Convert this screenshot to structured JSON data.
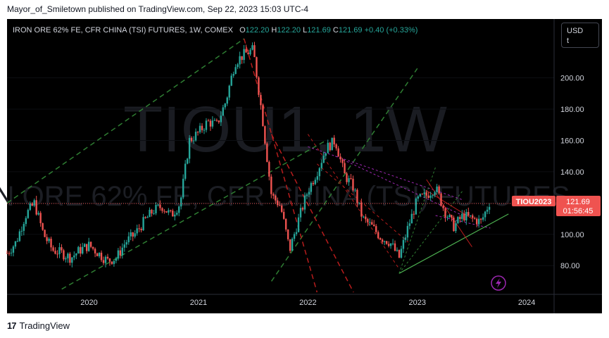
{
  "caption": "Mayor_of_Smiletown published on TradingView.com, Sep 22, 2023 15:03 UTC-4",
  "header": {
    "symbol": "IRON ORE 62% FE, CFR CHINA (TSI) FUTURES, 1W, COMEX",
    "open_label": "O",
    "open": "122.20",
    "high_label": "H",
    "high": "122.20",
    "low_label": "L",
    "low": "121.69",
    "close_label": "C",
    "close": "121.69",
    "change": "+0.40 (+0.33%)"
  },
  "currency": {
    "line1": "USD",
    "line2": "t"
  },
  "watermark": {
    "big": "TIOU1, 1W",
    "small": "IRON ORE 62% FE, CFR CHINA (TSI) FUTURES"
  },
  "price_tag": {
    "symbol": "TIOU2023",
    "price": "121.69",
    "countdown": "01:56:45"
  },
  "footer": {
    "brand": "TradingView",
    "mark": "17"
  },
  "colors": {
    "up": "#26a69a",
    "down": "#ef5350",
    "accent_green": "#4caf50",
    "accent_violet": "#9c27b0",
    "background": "#000000"
  },
  "chart_data": {
    "type": "candlestick",
    "x_ticks": [
      "2020",
      "2021",
      "2022",
      "2023",
      "2024"
    ],
    "y_ticks": [
      80,
      100,
      120,
      140,
      160,
      180,
      200
    ],
    "ylim": [
      63,
      225
    ],
    "xlim": [
      "2019-04",
      "2024-04"
    ],
    "close_series": [
      [
        "2019-04",
        88
      ],
      [
        "2019-05",
        95
      ],
      [
        "2019-06",
        112
      ],
      [
        "2019-07",
        120
      ],
      [
        "2019-08",
        100
      ],
      [
        "2019-09",
        90
      ],
      [
        "2019-10",
        88
      ],
      [
        "2019-11",
        85
      ],
      [
        "2019-12",
        90
      ],
      [
        "2020-01",
        93
      ],
      [
        "2020-02",
        88
      ],
      [
        "2020-03",
        83
      ],
      [
        "2020-04",
        85
      ],
      [
        "2020-05",
        95
      ],
      [
        "2020-06",
        100
      ],
      [
        "2020-07",
        108
      ],
      [
        "2020-08",
        115
      ],
      [
        "2020-09",
        118
      ],
      [
        "2020-10",
        112
      ],
      [
        "2020-11",
        120
      ],
      [
        "2020-12",
        160
      ],
      [
        "2021-01",
        165
      ],
      [
        "2021-02",
        172
      ],
      [
        "2021-03",
        170
      ],
      [
        "2021-04",
        185
      ],
      [
        "2021-05",
        210
      ],
      [
        "2021-06",
        215
      ],
      [
        "2021-07",
        218
      ],
      [
        "2021-08",
        175
      ],
      [
        "2021-09",
        125
      ],
      [
        "2021-10",
        118
      ],
      [
        "2021-11",
        90
      ],
      [
        "2021-12",
        110
      ],
      [
        "2022-01",
        128
      ],
      [
        "2022-02",
        140
      ],
      [
        "2022-03",
        155
      ],
      [
        "2022-04",
        160
      ],
      [
        "2022-05",
        138
      ],
      [
        "2022-06",
        130
      ],
      [
        "2022-07",
        110
      ],
      [
        "2022-08",
        105
      ],
      [
        "2022-09",
        98
      ],
      [
        "2022-10",
        95
      ],
      [
        "2022-11",
        85
      ],
      [
        "2022-12",
        105
      ],
      [
        "2023-01",
        122
      ],
      [
        "2023-02",
        125
      ],
      [
        "2023-03",
        130
      ],
      [
        "2023-04",
        115
      ],
      [
        "2023-05",
        105
      ],
      [
        "2023-06",
        112
      ],
      [
        "2023-07",
        110
      ],
      [
        "2023-08",
        108
      ],
      [
        "2023-09",
        121.69
      ]
    ]
  }
}
